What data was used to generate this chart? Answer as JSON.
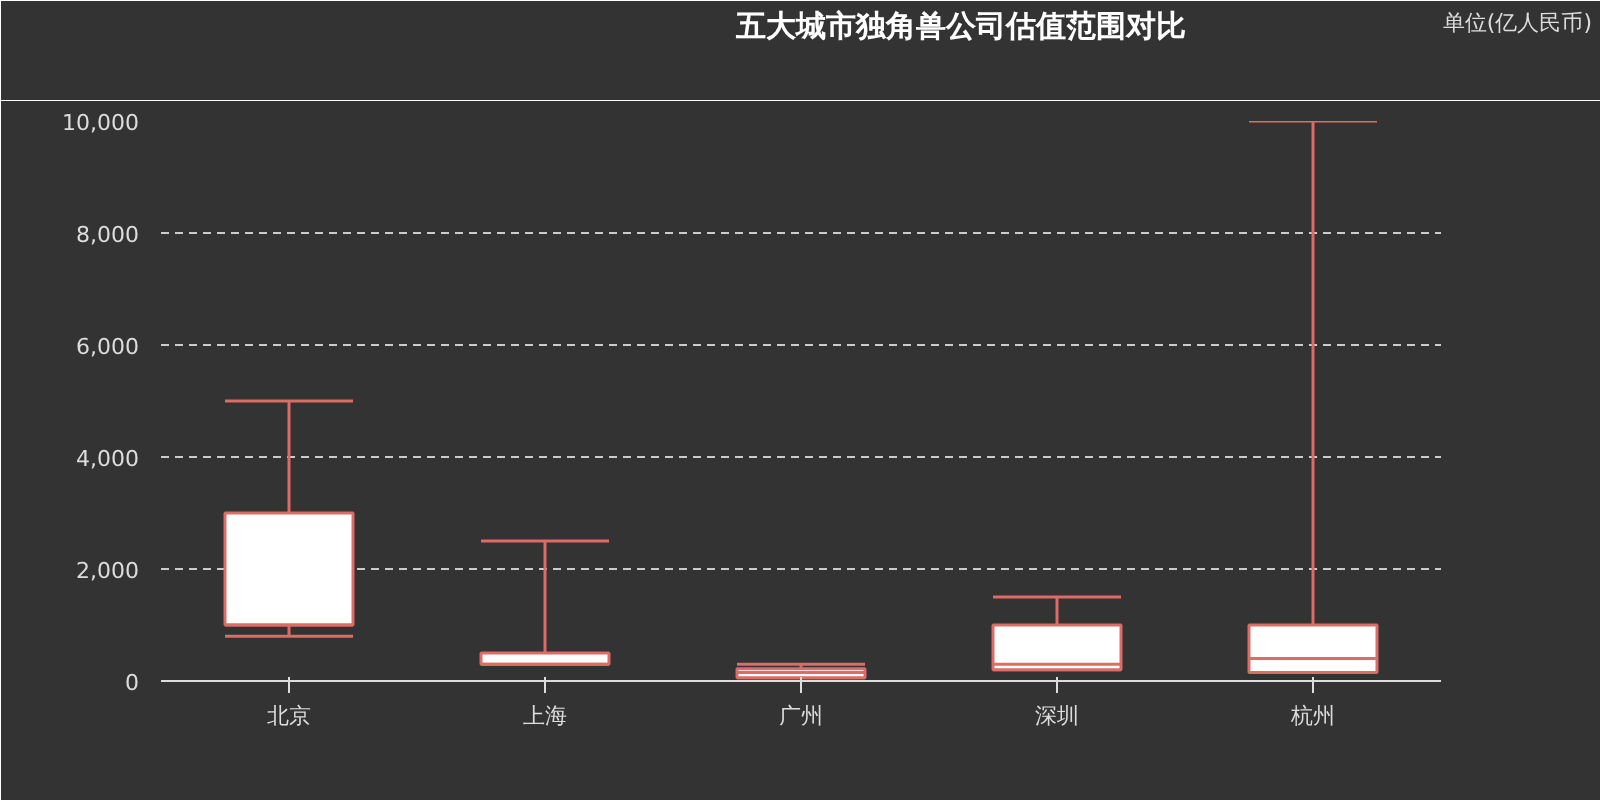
{
  "chart_data": {
    "type": "box",
    "title": "五大城市独角兽公司估值范围对比",
    "categories": [
      "北京",
      "上海",
      "广州",
      "深圳",
      "杭州"
    ],
    "series": [
      {
        "name": "单位(亿人民币)",
        "color": "#dd6b66",
        "boxes": [
          {
            "low": 800,
            "q1": 1000,
            "median": 1000,
            "q3": 3000,
            "high": 5000
          },
          {
            "low": 300,
            "q1": 300,
            "median": 300,
            "q3": 500,
            "high": 2500
          },
          {
            "low": 60,
            "q1": 60,
            "median": 150,
            "q3": 220,
            "high": 300
          },
          {
            "low": 200,
            "q1": 200,
            "median": 300,
            "q3": 1000,
            "high": 1500
          },
          {
            "low": 150,
            "q1": 150,
            "median": 400,
            "q3": 1000,
            "high": 10000
          }
        ]
      }
    ],
    "ylim": [
      0,
      10000
    ],
    "yticks": [
      0,
      {
        "value": 2000,
        "label": "2,000"
      },
      {
        "value": 4000,
        "label": "4,000"
      },
      {
        "value": 6000,
        "label": "6,000"
      },
      {
        "value": 8000,
        "label": "8,000"
      },
      {
        "value": 10000,
        "label": "10,000"
      }
    ],
    "grid": "y",
    "legend": "top right"
  }
}
